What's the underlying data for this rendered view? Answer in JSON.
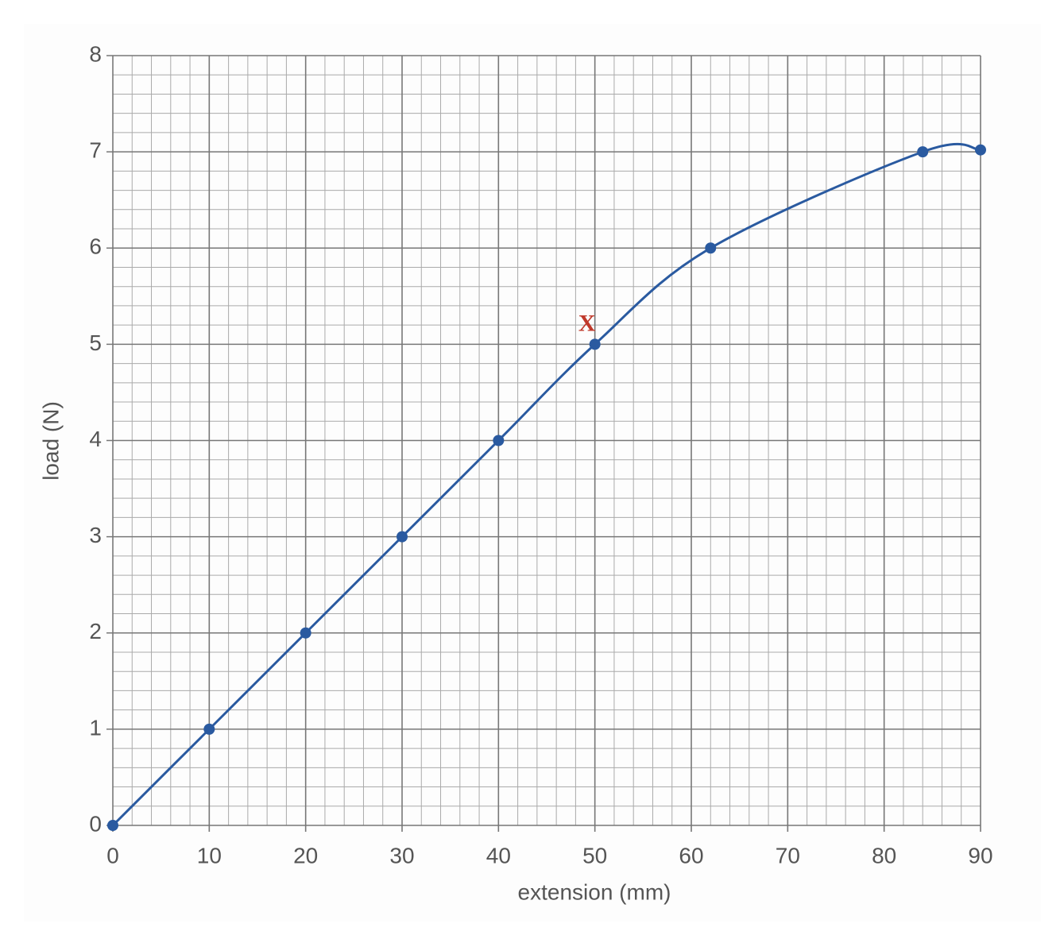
{
  "chart_data": {
    "type": "line",
    "x_label": "extension (mm)",
    "y_label": "load (N)",
    "x": [
      0,
      10,
      20,
      30,
      40,
      50,
      62,
      84,
      90
    ],
    "series": [
      {
        "color": "#2a5aa0",
        "values": [
          0,
          1,
          2,
          3,
          4,
          5,
          6,
          7,
          7.02
        ]
      }
    ],
    "annotation": "X",
    "annotation_color": "#c0392b",
    "xlim": [
      0,
      90
    ],
    "xticks": [
      0,
      10,
      20,
      30,
      40,
      50,
      60,
      70,
      80,
      90
    ],
    "ylim": [
      0,
      8
    ],
    "yticks": [
      0,
      1,
      2,
      3,
      4,
      5,
      6,
      7,
      8
    ],
    "grid": true,
    "smooth": true
  }
}
